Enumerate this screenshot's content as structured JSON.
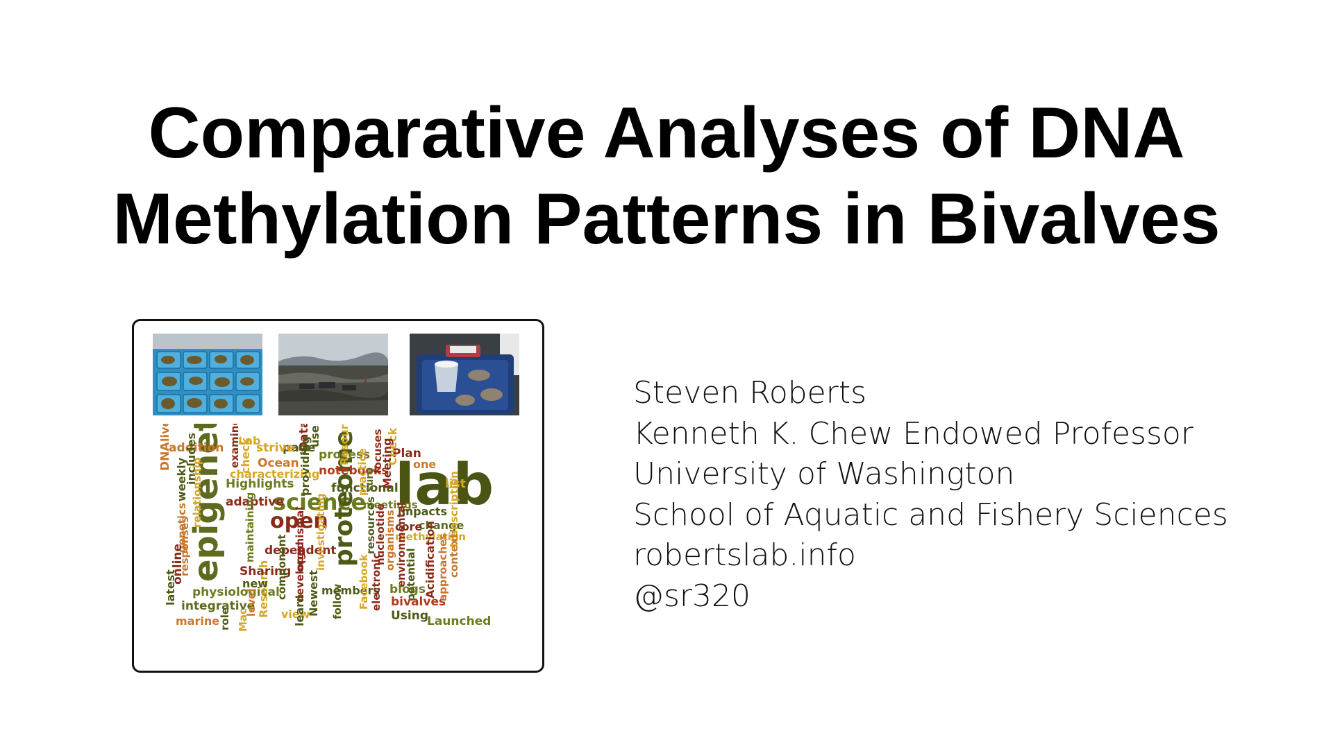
{
  "slide": {
    "title_lines": [
      "Comparative Analyses of DNA",
      "Methylation Patterns in Bivalves"
    ],
    "author_lines": [
      "Steven Roberts",
      "Kenneth K. Chew Endowed Professor",
      "University of Washington",
      "School of Aquatic and Fishery Sciences",
      "robertslab.info",
      "@sr320"
    ]
  },
  "figure": {
    "photos": [
      "oysters-in-blue-trays-photo",
      "mudflat-shoreline-photo",
      "oyster-tray-lab-photo"
    ],
    "word_cloud": [
      {
        "text": "epigenetics",
        "color": "#5e6b1e"
      },
      {
        "text": "lab",
        "color": "#4a5514"
      },
      {
        "text": "science",
        "color": "#6b7a1c"
      },
      {
        "text": "proteome",
        "color": "#4d5a16"
      },
      {
        "text": "open",
        "color": "#8a2b18"
      },
      {
        "text": "Highlights",
        "color": "#6d7a20"
      },
      {
        "text": "adaptive",
        "color": "#8a2b18"
      },
      {
        "text": "process",
        "color": "#6d7a20"
      },
      {
        "text": "notebooks",
        "color": "#b03a1e"
      },
      {
        "text": "functional",
        "color": "#4d5a16"
      },
      {
        "text": "meetings",
        "color": "#6d7a20"
      },
      {
        "text": "impacts",
        "color": "#4d5a16"
      },
      {
        "text": "change",
        "color": "#5e6b1e"
      },
      {
        "text": "core",
        "color": "#7d2a18"
      },
      {
        "text": "methylation",
        "color": "#d6a625"
      },
      {
        "text": "transcription",
        "color": "#d6a625"
      },
      {
        "text": "list",
        "color": "#d6a625"
      },
      {
        "text": "Plan",
        "color": "#8a2b18"
      },
      {
        "text": "one",
        "color": "#c9782a"
      },
      {
        "text": "Check",
        "color": "#d6a625"
      },
      {
        "text": "Meeting",
        "color": "#8a2b18"
      },
      {
        "text": "focuses",
        "color": "#8a2b18"
      },
      {
        "text": "sure",
        "color": "#5e6b1e"
      },
      {
        "text": "practice",
        "color": "#d6a625"
      },
      {
        "text": "Resource",
        "color": "#d6a625"
      },
      {
        "text": "Data",
        "color": "#8a2b18"
      },
      {
        "text": "use",
        "color": "#4d5a16"
      },
      {
        "text": "page",
        "color": "#4d5a16"
      },
      {
        "text": "strive",
        "color": "#d6a625"
      },
      {
        "text": "Ocean",
        "color": "#c9782a"
      },
      {
        "text": "characterizing",
        "color": "#d6a625"
      },
      {
        "text": "providing",
        "color": "#4d5a16"
      },
      {
        "text": "Lab",
        "color": "#d6a625"
      },
      {
        "text": "check",
        "color": "#d6a625"
      },
      {
        "text": "examine",
        "color": "#8a2b18"
      },
      {
        "text": "addition",
        "color": "#c9782a"
      },
      {
        "text": "DNA",
        "color": "#c9782a"
      },
      {
        "text": "live",
        "color": "#c9782a"
      },
      {
        "text": "includes",
        "color": "#4d5a16"
      },
      {
        "text": "weekly",
        "color": "#4d5a16"
      },
      {
        "text": "relationship",
        "color": "#d6a625"
      },
      {
        "text": "responses",
        "color": "#c9782a"
      },
      {
        "text": "genetics",
        "color": "#c9782a"
      },
      {
        "text": "online",
        "color": "#8a2b18"
      },
      {
        "text": "latest",
        "color": "#4d5a16"
      },
      {
        "text": "physiological",
        "color": "#6d7a20"
      },
      {
        "text": "integrative",
        "color": "#5e6b1e"
      },
      {
        "text": "marine",
        "color": "#c9782a"
      },
      {
        "text": "role",
        "color": "#4d5a16"
      },
      {
        "text": "Mac",
        "color": "#d6a625"
      },
      {
        "text": "level",
        "color": "#c9782a"
      },
      {
        "text": "Research",
        "color": "#d6a625"
      },
      {
        "text": "new",
        "color": "#4d5a16"
      },
      {
        "text": "Sharing",
        "color": "#8a2b18"
      },
      {
        "text": "maintaining",
        "color": "#6d7a20"
      },
      {
        "text": "dependent",
        "color": "#8a2b18"
      },
      {
        "text": "component",
        "color": "#4d5a16"
      },
      {
        "text": "organismal",
        "color": "#8a2b18"
      },
      {
        "text": "developed",
        "color": "#8a2b18"
      },
      {
        "text": "view",
        "color": "#d6a625"
      },
      {
        "text": "learn",
        "color": "#4d5a16"
      },
      {
        "text": "Newest",
        "color": "#4d5a16"
      },
      {
        "text": "investigating",
        "color": "#d6a625"
      },
      {
        "text": "follow",
        "color": "#4d5a16"
      },
      {
        "text": "members",
        "color": "#4d5a16"
      },
      {
        "text": "resources",
        "color": "#4d5a16"
      },
      {
        "text": "nucleotide",
        "color": "#8a2b18"
      },
      {
        "text": "Facebook",
        "color": "#d6a625"
      },
      {
        "text": "electronic",
        "color": "#8a2b18"
      },
      {
        "text": "organisms",
        "color": "#c9782a"
      },
      {
        "text": "environmental",
        "color": "#8a2b18"
      },
      {
        "text": "blogs",
        "color": "#6d7a20"
      },
      {
        "text": "potential",
        "color": "#4d5a16"
      },
      {
        "text": "bivalves",
        "color": "#b03a1e"
      },
      {
        "text": "Using",
        "color": "#4d5a16"
      },
      {
        "text": "Acidification",
        "color": "#8a2b18"
      },
      {
        "text": "approaches",
        "color": "#c9782a"
      },
      {
        "text": "context",
        "color": "#c9782a"
      },
      {
        "text": "Launched",
        "color": "#6d7a20"
      }
    ]
  }
}
